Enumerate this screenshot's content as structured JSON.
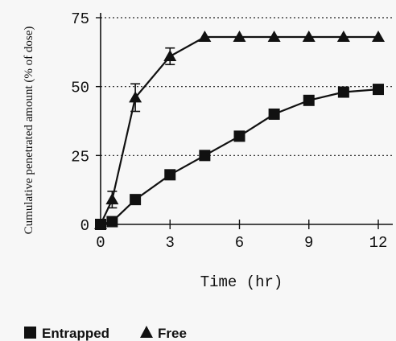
{
  "chart_data": {
    "type": "line",
    "xlabel": "Time (hr)",
    "ylabel": "Cumulative penetrated amount (% of dose)",
    "xlim": [
      0,
      12
    ],
    "ylim": [
      0,
      75
    ],
    "xticks": [
      0,
      3,
      6,
      9,
      12
    ],
    "yticks": [
      0,
      25,
      50,
      75
    ],
    "grid": "horizontal dotted at 25, 50, 75",
    "legend_position": "bottom-left",
    "series": [
      {
        "name": "Entrapped",
        "marker": "square",
        "x": [
          0,
          0.5,
          1.5,
          3,
          4.5,
          6,
          7.5,
          9,
          10.5,
          12
        ],
        "y": [
          0,
          1,
          9,
          18,
          25,
          32,
          40,
          45,
          48,
          49
        ]
      },
      {
        "name": "Free",
        "marker": "triangle",
        "x": [
          0,
          0.5,
          1.5,
          3,
          4.5,
          6,
          7.5,
          9,
          10.5,
          12
        ],
        "y": [
          0,
          9,
          46,
          61,
          68,
          68,
          68,
          68,
          68,
          68
        ],
        "error": [
          0,
          3,
          5,
          3,
          0,
          0,
          0,
          0,
          0,
          0
        ]
      }
    ]
  }
}
